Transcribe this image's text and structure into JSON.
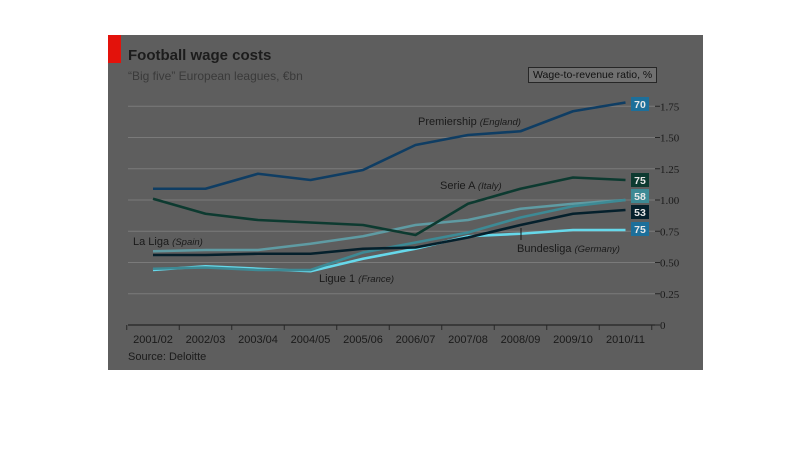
{
  "chart": {
    "title": "Football wage costs",
    "subtitle": "“Big five” European leagues, €bn",
    "source": "Source: Deloitte",
    "ratio_title": "Wage-to-revenue ratio, %"
  },
  "colors": {
    "background": "#5e5e5e",
    "grid": "#7a7a7a",
    "axis": "#262626",
    "brand_red": "#e3120b",
    "premiership": "#0f3d63",
    "serie_a": "#0d3a30",
    "ligue_1": "#3d8a95",
    "bundesliga": "#05202c",
    "la_liga": "#66d8ea"
  },
  "chart_data": {
    "type": "line",
    "title": "Football wage costs",
    "subtitle": "“Big five” European leagues, €bn",
    "x": [
      "2001/02",
      "2002/03",
      "2003/04",
      "2004/05",
      "2005/06",
      "2006/07",
      "2007/08",
      "2008/09",
      "2009/10",
      "2010/11"
    ],
    "ylim": [
      0,
      1.75
    ],
    "yticks": [
      "0",
      "0.25",
      "0.50",
      "0.75",
      "1.00",
      "1.25",
      "1.50",
      "1.75"
    ],
    "grid": true,
    "series": [
      {
        "name": "Premiership",
        "country": "(England)",
        "ratio": "70",
        "color": "#0f3d63",
        "values": [
          1.09,
          1.09,
          1.21,
          1.16,
          1.24,
          1.44,
          1.52,
          1.55,
          1.71,
          1.78
        ]
      },
      {
        "name": "Serie A",
        "country": "(Italy)",
        "ratio": "75",
        "color": "#0d3a30",
        "values": [
          1.01,
          0.89,
          0.84,
          0.82,
          0.8,
          0.72,
          0.97,
          1.09,
          1.18,
          1.16
        ]
      },
      {
        "name": "Ligue 1",
        "country": "(France)",
        "ratio": "58",
        "color": "#3d8a95",
        "values": [
          0.45,
          0.46,
          0.44,
          0.44,
          0.58,
          0.66,
          0.74,
          0.86,
          0.95,
          1.0
        ]
      },
      {
        "name": "Bundesliga",
        "country": "(Germany)",
        "ratio": "53",
        "color": "#05202c",
        "values": [
          0.56,
          0.56,
          0.57,
          0.57,
          0.61,
          0.62,
          0.7,
          0.8,
          0.89,
          0.92
        ]
      },
      {
        "name": "La Liga",
        "country": "(Spain)",
        "ratio": "75",
        "color": "#66d8ea",
        "values": [
          0.44,
          0.47,
          0.45,
          0.43,
          0.53,
          0.61,
          0.71,
          0.73,
          0.76,
          0.76
        ]
      },
      {
        "name": "",
        "country": "",
        "ratio": "",
        "color": "#5f9ba3",
        "values": [
          0.59,
          0.6,
          0.6,
          0.65,
          0.71,
          0.8,
          0.84,
          0.93,
          0.97,
          1.0
        ]
      }
    ]
  }
}
